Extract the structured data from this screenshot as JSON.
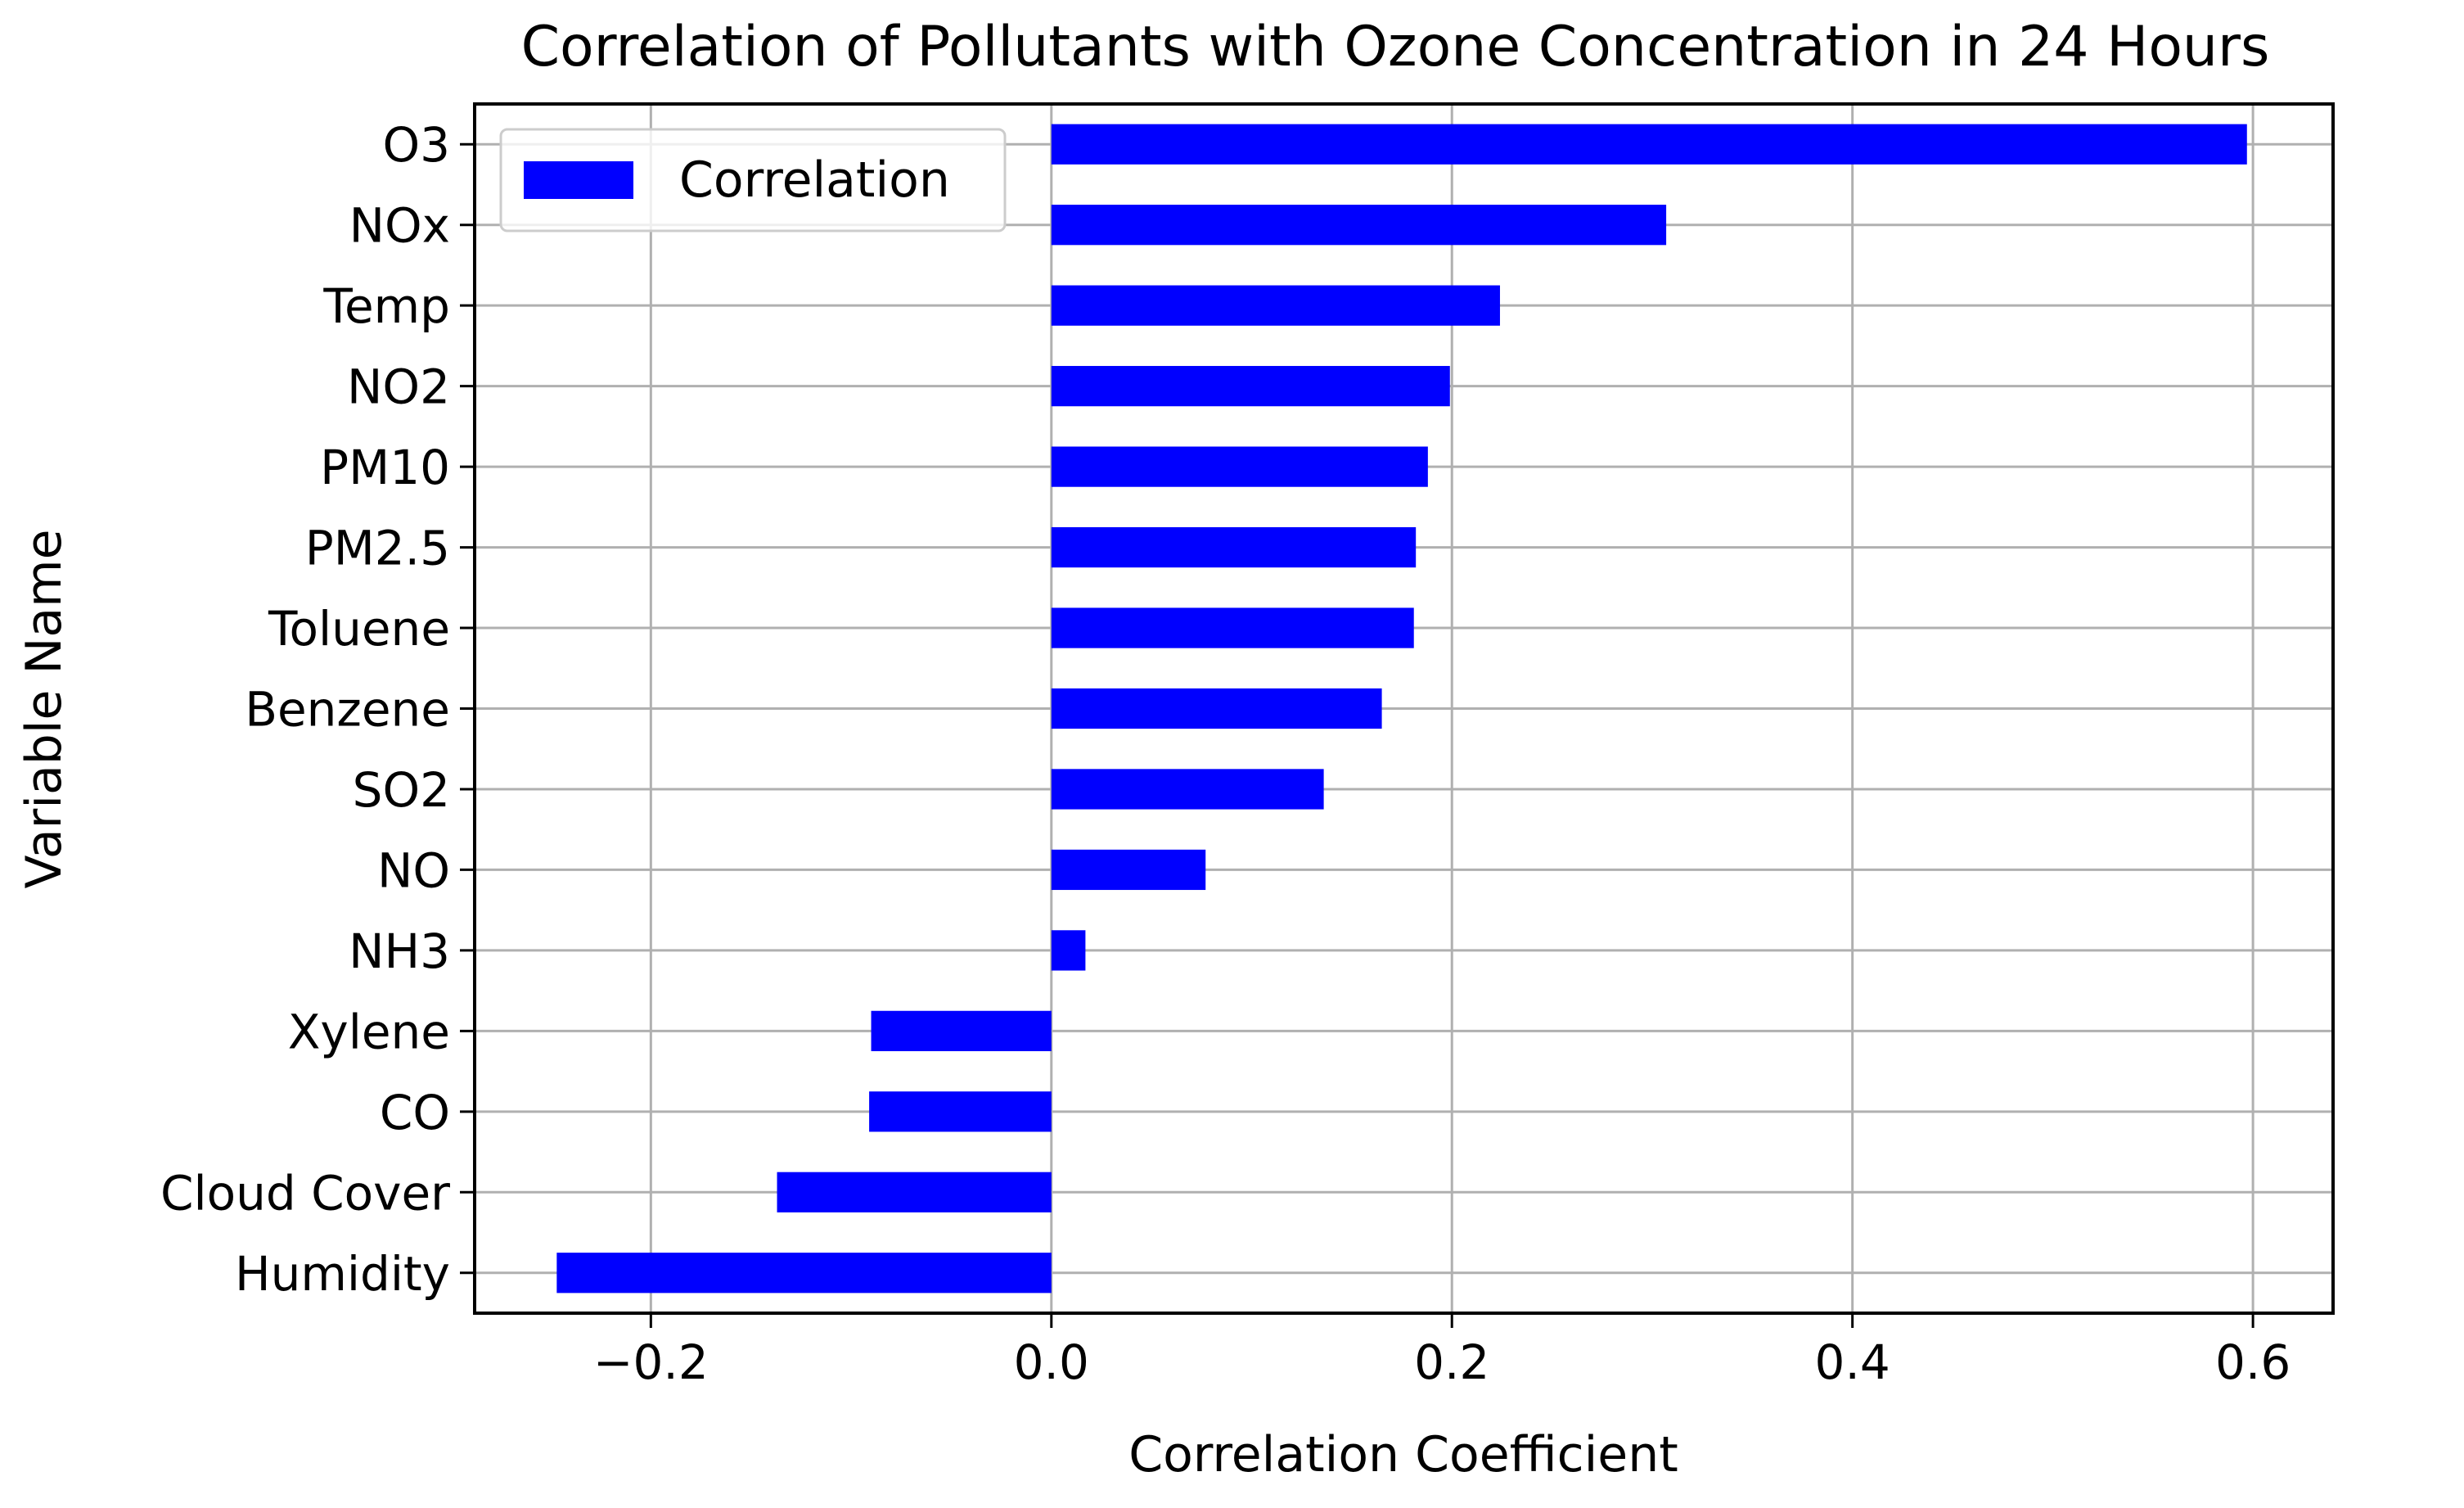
{
  "chart_data": {
    "type": "bar",
    "orientation": "horizontal",
    "title": "Correlation of Pollutants with Ozone Concentration in 24 Hours",
    "xlabel": "Correlation Coefficient",
    "ylabel": "Variable Name",
    "categories": [
      "O3",
      "NOx",
      "Temp",
      "NO2",
      "PM10",
      "PM2.5",
      "Toluene",
      "Benzene",
      "SO2",
      "NO",
      "NH3",
      "Xylene",
      "CO",
      "Cloud Cover",
      "Humidity"
    ],
    "series": [
      {
        "name": "Correlation",
        "color": "#0000ff",
        "values": [
          0.597,
          0.307,
          0.224,
          0.199,
          0.188,
          0.182,
          0.181,
          0.165,
          0.136,
          0.077,
          0.017,
          -0.09,
          -0.091,
          -0.137,
          -0.247
        ]
      }
    ],
    "xlim": [
      -0.288,
      0.64
    ],
    "xticks": [
      -0.2,
      0.0,
      0.2,
      0.4,
      0.6
    ],
    "xtick_labels": [
      "−0.2",
      "0.0",
      "0.2",
      "0.4",
      "0.6"
    ],
    "grid": true,
    "legend": {
      "position": "upper-left",
      "entries": [
        "Correlation"
      ]
    }
  }
}
